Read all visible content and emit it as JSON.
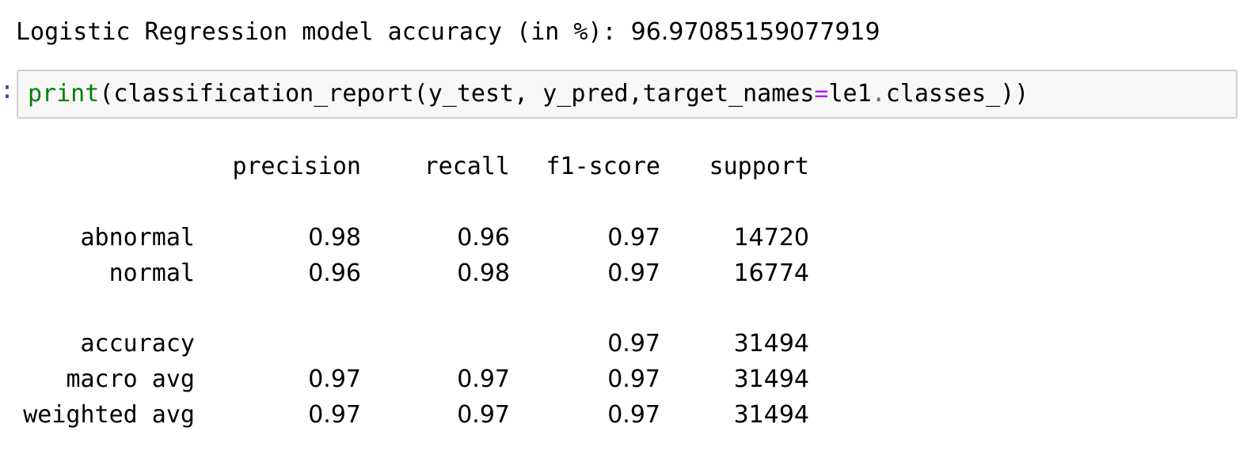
{
  "output": {
    "accuracy_label": "Logistic Regression model accuracy (in %): ",
    "accuracy_value": "96.97085159077919"
  },
  "cell": {
    "prompt": ":",
    "code_builtin": "print",
    "code_part1": "(classification_report(y_test, y_pred,target_names",
    "code_eq": "=",
    "code_part2": "le1",
    "code_dot": ".",
    "code_part3": "classes_))"
  },
  "report": {
    "headers": [
      "precision",
      "recall",
      "f1-score",
      "support"
    ],
    "rows": [
      {
        "label": "abnormal",
        "precision": "0.98",
        "recall": "0.96",
        "f1": "0.97",
        "support": "14720"
      },
      {
        "label": "normal",
        "precision": "0.96",
        "recall": "0.98",
        "f1": "0.97",
        "support": "16774"
      },
      {
        "label": "accuracy",
        "precision": "",
        "recall": "",
        "f1": "0.97",
        "support": "31494"
      },
      {
        "label": "macro avg",
        "precision": "0.97",
        "recall": "0.97",
        "f1": "0.97",
        "support": "31494"
      },
      {
        "label": "weighted avg",
        "precision": "0.97",
        "recall": "0.97",
        "f1": "0.97",
        "support": "31494"
      }
    ]
  },
  "colors": {
    "builtin": "#008000",
    "operator": "#aa22ff",
    "prompt": "#303f9f",
    "cell_border": "#cfcfcf",
    "cell_bg": "#f7f7f7"
  }
}
